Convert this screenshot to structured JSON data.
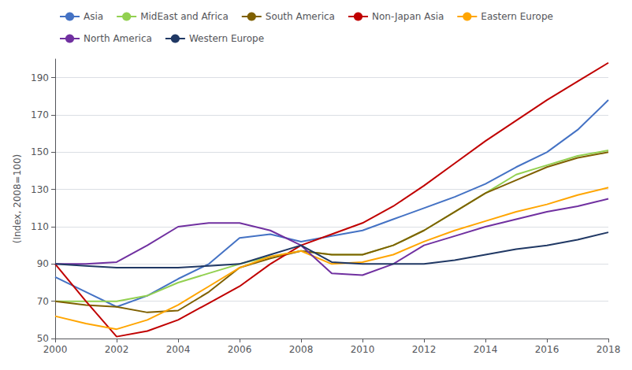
{
  "chart_data": {
    "type": "line",
    "ylabel": "(Index, 2008=100)",
    "x": [
      2000,
      2001,
      2002,
      2003,
      2004,
      2005,
      2006,
      2007,
      2008,
      2009,
      2010,
      2011,
      2012,
      2013,
      2014,
      2015,
      2016,
      2017,
      2018
    ],
    "series": [
      {
        "name": "Asia",
        "color": "#4472C4",
        "values": [
          83,
          75,
          67,
          73,
          82,
          90,
          104,
          106,
          102,
          105,
          108,
          114,
          120,
          126,
          133,
          142,
          150,
          162,
          178
        ]
      },
      {
        "name": "MidEast and Africa",
        "color": "#92D050",
        "values": [
          70,
          70,
          70,
          73,
          80,
          85,
          90,
          94,
          97,
          95,
          95,
          100,
          108,
          118,
          128,
          138,
          143,
          148,
          151
        ]
      },
      {
        "name": "South America",
        "color": "#7F6000",
        "values": [
          70,
          68,
          67,
          64,
          65,
          75,
          88,
          93,
          97,
          95,
          95,
          100,
          108,
          118,
          128,
          135,
          142,
          147,
          150
        ]
      },
      {
        "name": "Non-Japan Asia",
        "color": "#C00000",
        "values": [
          90,
          70,
          51,
          54,
          60,
          69,
          78,
          90,
          100,
          106,
          112,
          121,
          132,
          144,
          156,
          167,
          178,
          188,
          198
        ]
      },
      {
        "name": "Eastern Europe",
        "color": "#FFA500",
        "values": [
          62,
          58,
          55,
          60,
          68,
          78,
          88,
          94,
          97,
          90,
          91,
          95,
          102,
          108,
          113,
          118,
          122,
          127,
          131
        ]
      },
      {
        "name": "North America",
        "color": "#7030A0",
        "values": [
          90,
          90,
          91,
          100,
          110,
          112,
          112,
          108,
          100,
          85,
          84,
          90,
          100,
          105,
          110,
          114,
          118,
          121,
          125
        ]
      },
      {
        "name": "Western Europe",
        "color": "#203864",
        "values": [
          90,
          89,
          88,
          88,
          88,
          89,
          90,
          95,
          100,
          91,
          90,
          90,
          90,
          92,
          95,
          98,
          100,
          103,
          107
        ]
      }
    ],
    "xlim": [
      2000,
      2018
    ],
    "xticks": [
      2000,
      2002,
      2004,
      2006,
      2008,
      2010,
      2012,
      2014,
      2016,
      2018
    ],
    "ylim": [
      50,
      200
    ],
    "yticks": [
      50,
      70,
      90,
      110,
      130,
      150,
      170,
      190
    ],
    "grid": true,
    "legend": "upper left"
  }
}
